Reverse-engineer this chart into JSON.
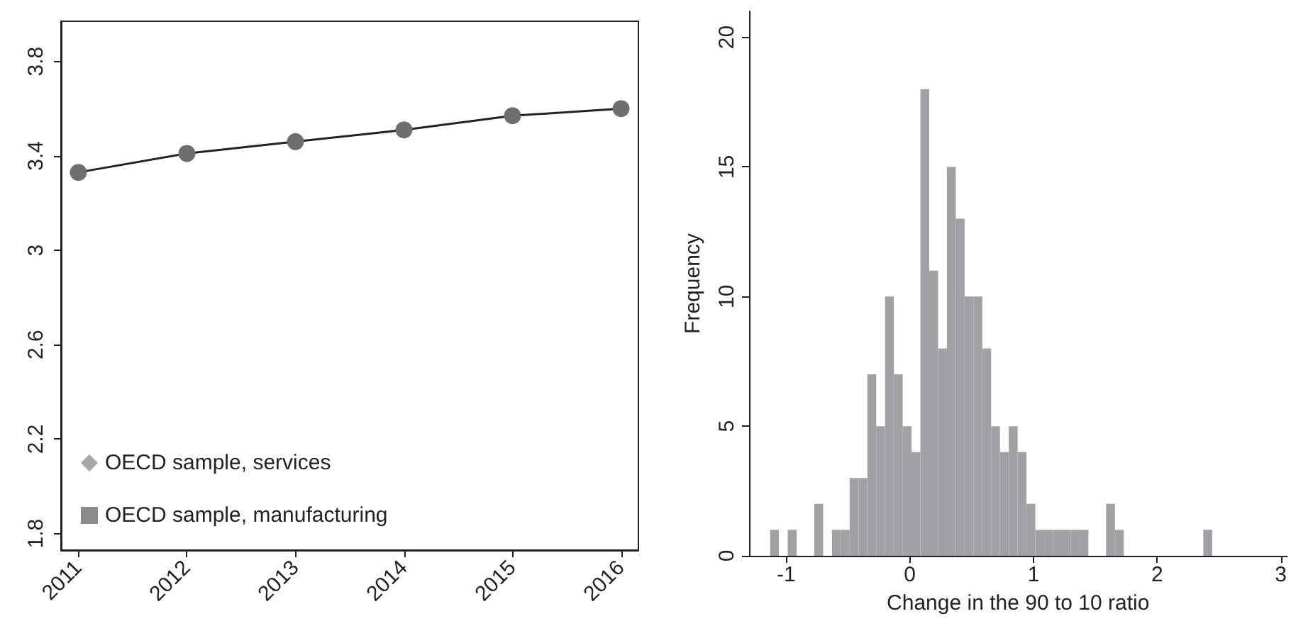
{
  "chart_data": [
    {
      "type": "line",
      "x": [
        2011,
        2012,
        2013,
        2014,
        2015,
        2016
      ],
      "xlim": [
        2010.84,
        2016.16
      ],
      "xticks": [
        2011,
        2012,
        2013,
        2014,
        2015,
        2016
      ],
      "ylim": [
        1.73,
        3.97
      ],
      "yticks": [
        1.8,
        2.2,
        2.6,
        3,
        3.4,
        3.8
      ],
      "grid": false,
      "legend": "bottom left",
      "series": [
        {
          "color": "#6e6e70",
          "marker": "circle",
          "values": [
            3.33,
            3.41,
            3.46,
            3.51,
            3.57,
            3.6
          ]
        },
        {
          "name": "OECD sample, services",
          "color": "#a6a6a8",
          "marker": "diamond",
          "values": [
            null,
            null,
            null,
            null,
            null,
            null
          ]
        },
        {
          "name": "OECD sample, manufacturing",
          "color": "#8c8c8e",
          "marker": "square",
          "values": [
            null,
            null,
            null,
            null,
            null,
            null
          ]
        }
      ]
    },
    {
      "type": "histogram",
      "xlabel": "Change in the 90 to 10 ratio",
      "ylabel": "Frequency",
      "color": "#a0a1a5",
      "grid": false,
      "xlim": [
        -1.3,
        3.05
      ],
      "xticks": [
        -1,
        0,
        1,
        2,
        3
      ],
      "ylim": [
        0,
        21
      ],
      "yticks": [
        0,
        5,
        10,
        15,
        20
      ],
      "bins": [
        -1.13,
        -1.0585,
        -0.987,
        -0.9155,
        -0.844,
        -0.7725,
        -0.701,
        -0.6295,
        -0.558,
        -0.4865,
        -0.415,
        -0.3435,
        -0.272,
        -0.2005,
        -0.129,
        -0.0575,
        0.014,
        0.0855,
        0.157,
        0.2285,
        0.3,
        0.3715,
        0.443,
        0.5145,
        0.586,
        0.6575,
        0.729,
        0.8005,
        0.872,
        0.9435,
        1.015,
        1.0865,
        1.158,
        1.2295,
        1.301,
        1.3725,
        1.444,
        1.5155,
        1.587,
        1.6585,
        1.73,
        1.8015,
        1.873,
        1.9445,
        2.016,
        2.0875,
        2.159,
        2.2305,
        2.302,
        2.3735,
        2.445
      ],
      "values": [
        1,
        0,
        1,
        0,
        0,
        2,
        0,
        1,
        1,
        3,
        3,
        7,
        5,
        10,
        7,
        5,
        4,
        18,
        11,
        8,
        15,
        13,
        10,
        10,
        8,
        5,
        4,
        5,
        4,
        2,
        1,
        1,
        1,
        1,
        1,
        1,
        0,
        0,
        2,
        1,
        0,
        0,
        0,
        0,
        0,
        0,
        0,
        0,
        0,
        1
      ]
    }
  ]
}
